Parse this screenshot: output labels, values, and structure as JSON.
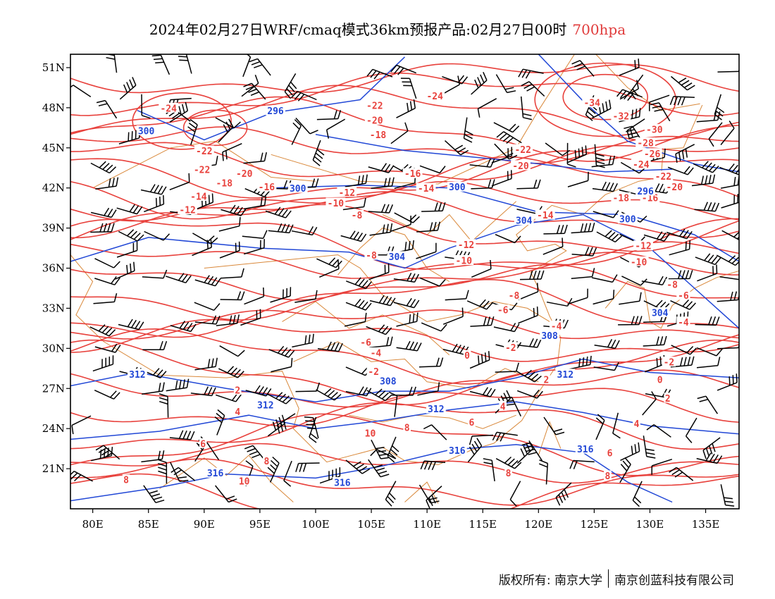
{
  "title": {
    "main": "2024年02月27日WRF/cmaq模式36km预报产品:02月27日00时",
    "level": "700hpa"
  },
  "colors": {
    "temperature_contour": "#e8413c",
    "height_contour": "#2147d6",
    "boundary": "#d9883a",
    "frame": "#000000"
  },
  "map": {
    "extent": {
      "lon": [
        78,
        138
      ],
      "lat": [
        18,
        52
      ]
    },
    "lon_ticks": [
      "80E",
      "85E",
      "90E",
      "95E",
      "100E",
      "105E",
      "110E",
      "115E",
      "120E",
      "125E",
      "130E",
      "135E"
    ],
    "lat_ticks": [
      "51N",
      "48N",
      "45N",
      "42N",
      "39N",
      "36N",
      "33N",
      "30N",
      "27N",
      "24N",
      "21N"
    ],
    "temperature_labels": [
      {
        "text": "-24",
        "lon": 86.8,
        "lat": 47.9
      },
      {
        "text": "-22",
        "lon": 90.0,
        "lat": 44.7
      },
      {
        "text": "-22",
        "lon": 89.8,
        "lat": 43.3
      },
      {
        "text": "-20",
        "lon": 93.6,
        "lat": 43.0
      },
      {
        "text": "-18",
        "lon": 91.8,
        "lat": 42.3
      },
      {
        "text": "-16",
        "lon": 95.6,
        "lat": 42.0
      },
      {
        "text": "-22",
        "lon": 105.3,
        "lat": 48.1
      },
      {
        "text": "-20",
        "lon": 105.3,
        "lat": 47.0
      },
      {
        "text": "-18",
        "lon": 105.6,
        "lat": 45.9
      },
      {
        "text": "-16",
        "lon": 108.7,
        "lat": 43.0
      },
      {
        "text": "-14",
        "lon": 89.5,
        "lat": 41.3
      },
      {
        "text": "-12",
        "lon": 88.5,
        "lat": 40.3
      },
      {
        "text": "-12",
        "lon": 102.8,
        "lat": 41.6
      },
      {
        "text": "-10",
        "lon": 101.8,
        "lat": 40.8
      },
      {
        "text": "-8",
        "lon": 103.7,
        "lat": 39.9
      },
      {
        "text": "-14",
        "lon": 109.9,
        "lat": 41.9
      },
      {
        "text": "-24",
        "lon": 110.7,
        "lat": 48.8
      },
      {
        "text": "-22",
        "lon": 118.6,
        "lat": 44.8
      },
      {
        "text": "-20",
        "lon": 118.4,
        "lat": 43.6
      },
      {
        "text": "-14",
        "lon": 120.6,
        "lat": 39.9
      },
      {
        "text": "-12",
        "lon": 113.5,
        "lat": 37.7
      },
      {
        "text": "-10",
        "lon": 113.3,
        "lat": 36.5
      },
      {
        "text": "-8",
        "lon": 105.0,
        "lat": 36.9
      },
      {
        "text": "-8",
        "lon": 117.8,
        "lat": 33.9
      },
      {
        "text": "-6",
        "lon": 116.8,
        "lat": 32.8
      },
      {
        "text": "-34",
        "lon": 124.8,
        "lat": 48.3
      },
      {
        "text": "-32",
        "lon": 127.4,
        "lat": 47.3
      },
      {
        "text": "-30",
        "lon": 130.4,
        "lat": 46.3
      },
      {
        "text": "-28",
        "lon": 129.6,
        "lat": 45.3
      },
      {
        "text": "-26",
        "lon": 130.2,
        "lat": 44.5
      },
      {
        "text": "-24",
        "lon": 129.2,
        "lat": 43.7
      },
      {
        "text": "-22",
        "lon": 131.2,
        "lat": 42.8
      },
      {
        "text": "-20",
        "lon": 132.2,
        "lat": 42.0
      },
      {
        "text": "-18",
        "lon": 127.4,
        "lat": 41.2
      },
      {
        "text": "-16",
        "lon": 130.0,
        "lat": 41.2
      },
      {
        "text": "-12",
        "lon": 129.4,
        "lat": 37.6
      },
      {
        "text": "-10",
        "lon": 129.0,
        "lat": 36.4
      },
      {
        "text": "-8",
        "lon": 132.0,
        "lat": 34.7
      },
      {
        "text": "-6",
        "lon": 133.0,
        "lat": 33.9
      },
      {
        "text": "-4",
        "lon": 133.0,
        "lat": 31.9
      },
      {
        "text": "-4",
        "lon": 121.6,
        "lat": 31.6
      },
      {
        "text": "-6",
        "lon": 104.5,
        "lat": 30.4
      },
      {
        "text": "-4",
        "lon": 105.4,
        "lat": 29.6
      },
      {
        "text": "-2",
        "lon": 105.2,
        "lat": 28.2
      },
      {
        "text": "0",
        "lon": 113.6,
        "lat": 29.4
      },
      {
        "text": "-2",
        "lon": 117.5,
        "lat": 30.0
      },
      {
        "text": "2",
        "lon": 120.7,
        "lat": 27.6
      },
      {
        "text": "-2",
        "lon": 131.7,
        "lat": 28.9
      },
      {
        "text": "0",
        "lon": 130.9,
        "lat": 27.6
      },
      {
        "text": "2",
        "lon": 131.6,
        "lat": 26.2
      },
      {
        "text": "2",
        "lon": 93.0,
        "lat": 26.8
      },
      {
        "text": "4",
        "lon": 93.0,
        "lat": 25.2
      },
      {
        "text": "4",
        "lon": 116.8,
        "lat": 25.6
      },
      {
        "text": "6",
        "lon": 114.0,
        "lat": 24.4
      },
      {
        "text": "8",
        "lon": 108.2,
        "lat": 24.0
      },
      {
        "text": "10",
        "lon": 104.9,
        "lat": 23.6
      },
      {
        "text": "4",
        "lon": 128.8,
        "lat": 24.3
      },
      {
        "text": "6",
        "lon": 89.9,
        "lat": 22.8
      },
      {
        "text": "6",
        "lon": 126.4,
        "lat": 22.1
      },
      {
        "text": "8",
        "lon": 95.6,
        "lat": 21.5
      },
      {
        "text": "8",
        "lon": 83.0,
        "lat": 20.1
      },
      {
        "text": "10",
        "lon": 93.6,
        "lat": 20.0
      },
      {
        "text": "8",
        "lon": 117.3,
        "lat": 20.6
      },
      {
        "text": "8",
        "lon": 126.2,
        "lat": 20.4
      }
    ],
    "height_labels": [
      {
        "text": "296",
        "lon": 96.4,
        "lat": 47.7
      },
      {
        "text": "300",
        "lon": 84.8,
        "lat": 46.2
      },
      {
        "text": "300",
        "lon": 98.4,
        "lat": 41.9
      },
      {
        "text": "300",
        "lon": 112.7,
        "lat": 42.0
      },
      {
        "text": "304",
        "lon": 118.7,
        "lat": 39.5
      },
      {
        "text": "300",
        "lon": 128.0,
        "lat": 39.6
      },
      {
        "text": "296",
        "lon": 129.6,
        "lat": 41.7
      },
      {
        "text": "304",
        "lon": 107.3,
        "lat": 36.8
      },
      {
        "text": "304",
        "lon": 130.9,
        "lat": 32.6
      },
      {
        "text": "308",
        "lon": 106.5,
        "lat": 27.5
      },
      {
        "text": "312",
        "lon": 84.0,
        "lat": 28.0
      },
      {
        "text": "312",
        "lon": 95.5,
        "lat": 25.7
      },
      {
        "text": "312",
        "lon": 110.8,
        "lat": 25.4
      },
      {
        "text": "312",
        "lon": 122.4,
        "lat": 28.0
      },
      {
        "text": "316",
        "lon": 112.7,
        "lat": 22.3
      },
      {
        "text": "316",
        "lon": 124.2,
        "lat": 22.4
      },
      {
        "text": "316",
        "lon": 91.0,
        "lat": 20.6
      },
      {
        "text": "316",
        "lon": 102.4,
        "lat": 19.9
      },
      {
        "text": "308",
        "lon": 121.0,
        "lat": 30.9
      }
    ]
  },
  "footer": {
    "copyright": "版权所有: 南京大学",
    "company": "南京创蓝科技有限公司"
  }
}
